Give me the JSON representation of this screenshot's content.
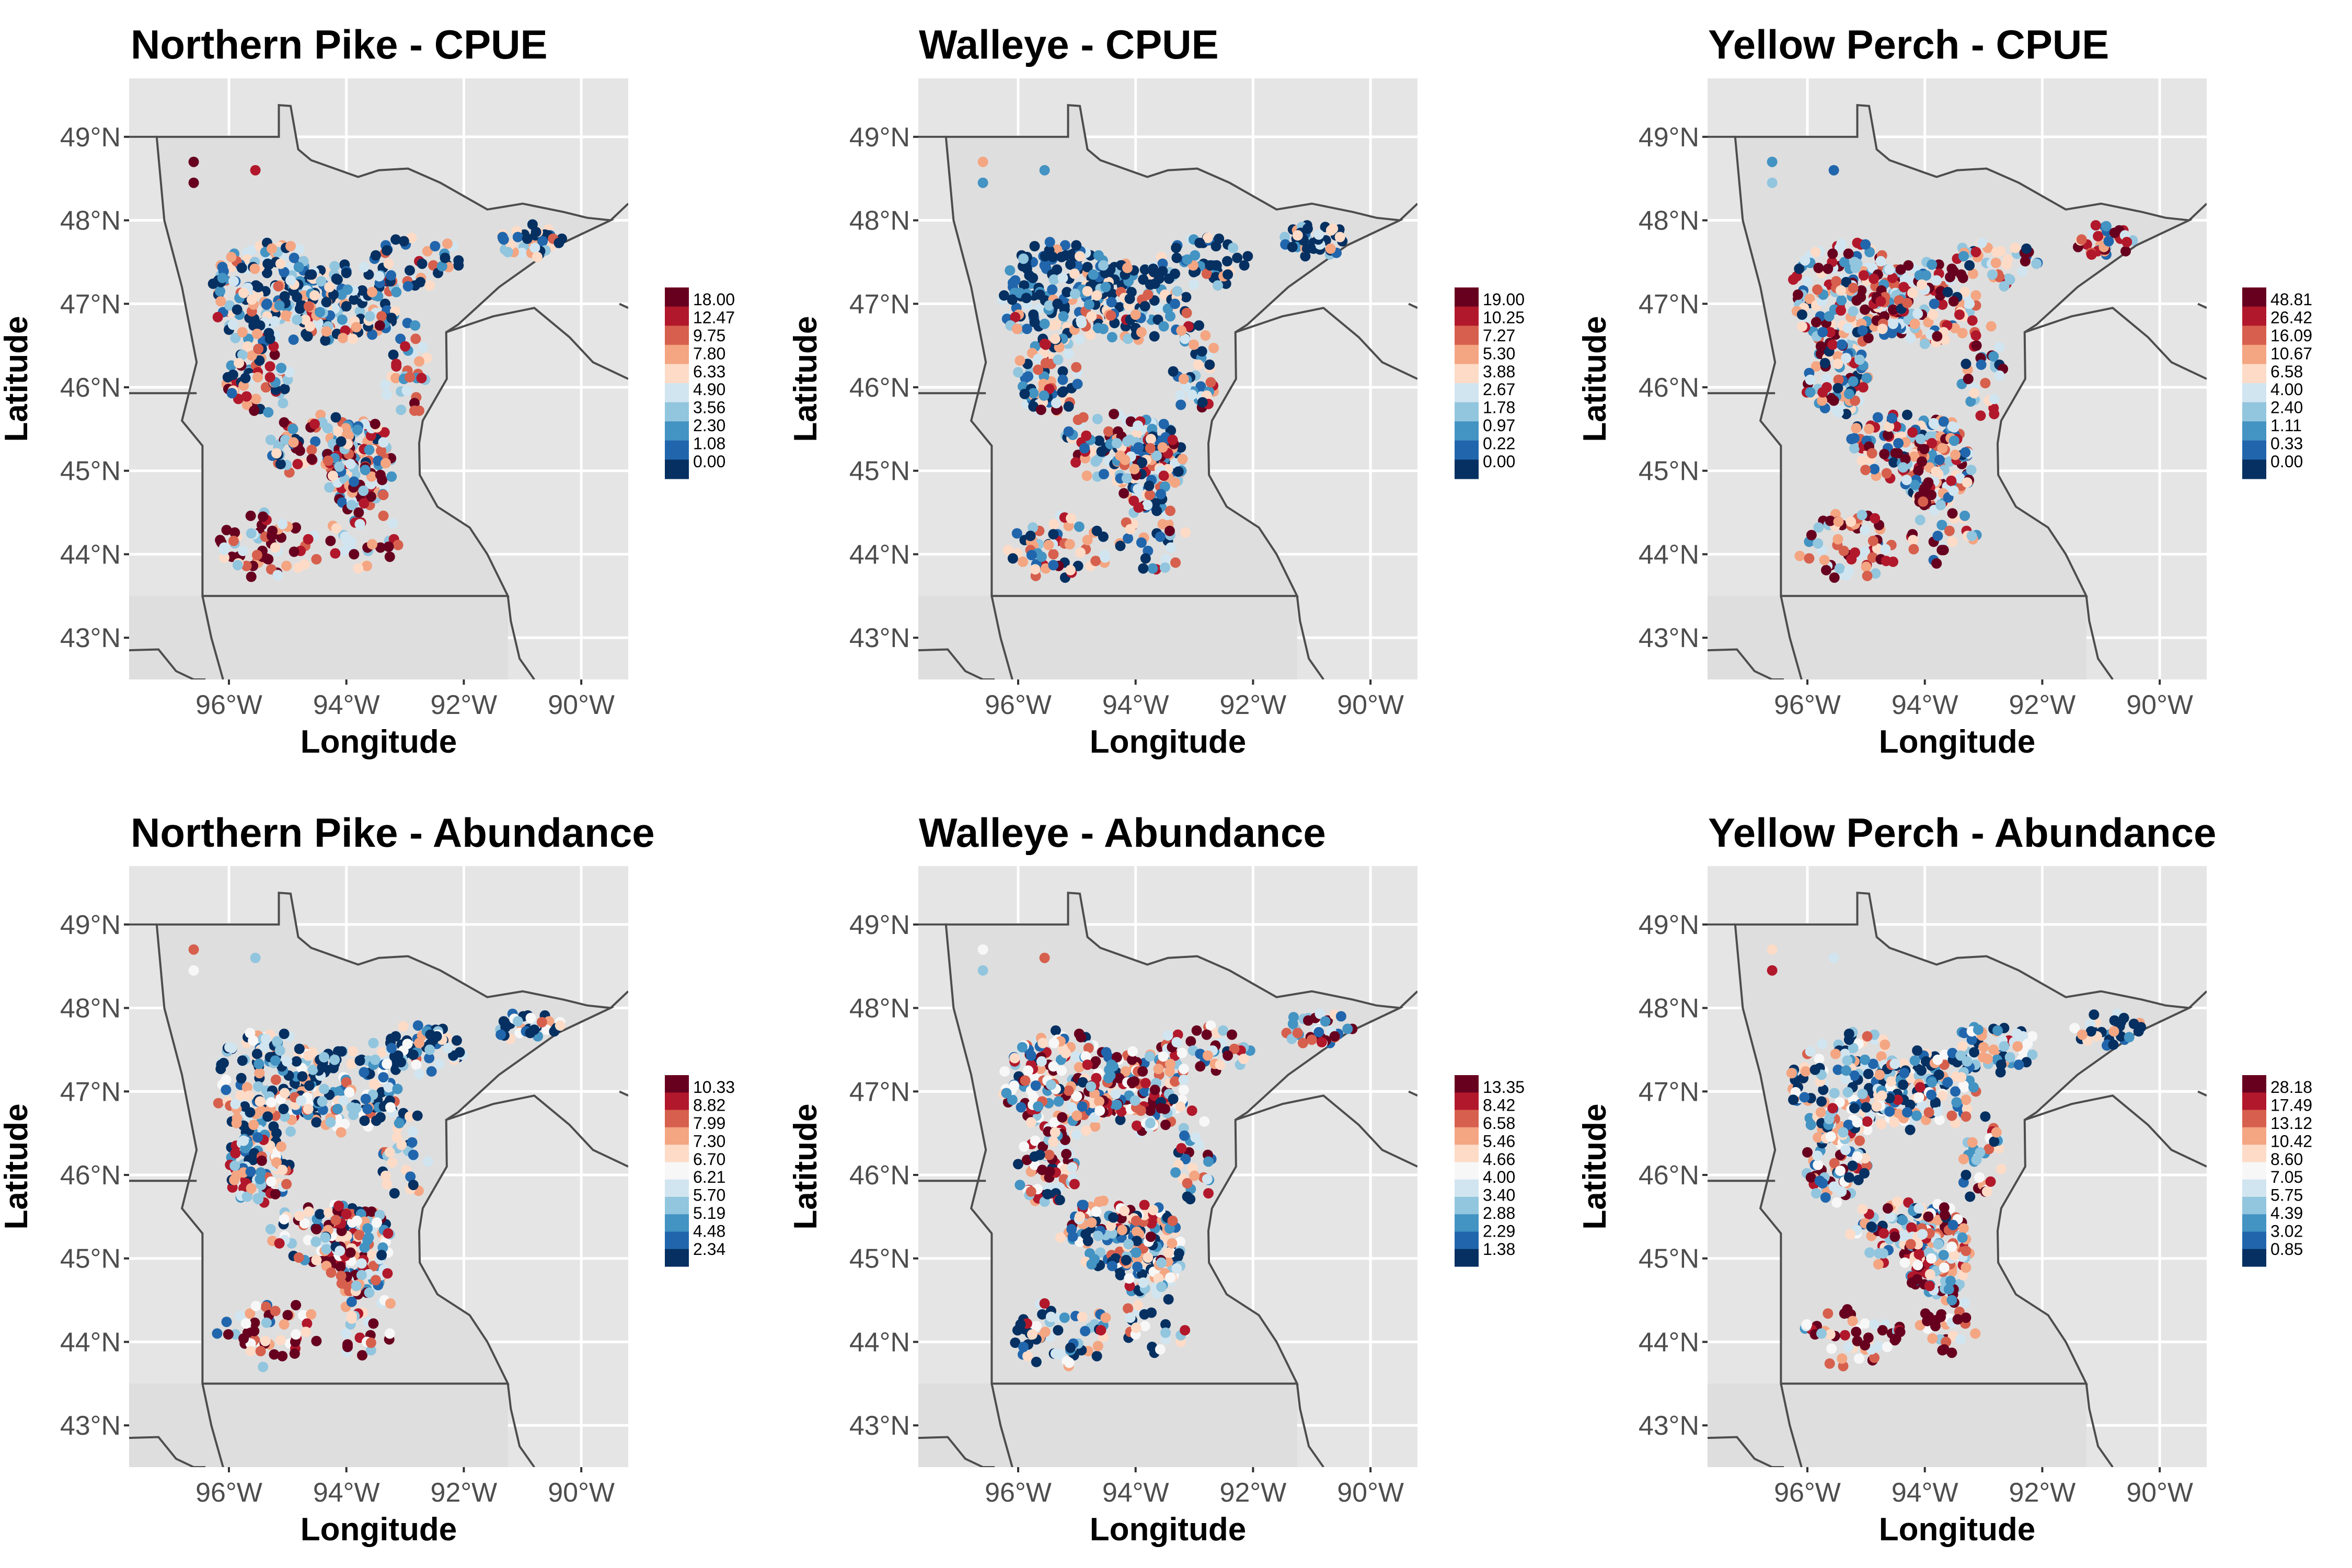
{
  "palette": [
    "#053061",
    "#2166ac",
    "#4393c3",
    "#92c5de",
    "#d1e5f0",
    "#f7f7f7",
    "#fddbc7",
    "#f4a582",
    "#d6604d",
    "#b2182b",
    "#67001f"
  ],
  "colors": {
    "panel_background": "#e5e5e5",
    "grid": "#ffffff",
    "land": "#dedede",
    "border": "#4d4d4d"
  },
  "axes": {
    "xlabel": "Longitude",
    "ylabel": "Latitude",
    "x_ticks": [
      -96,
      -94,
      -92,
      -90
    ],
    "x_tick_labels": [
      "96°W",
      "94°W",
      "92°W",
      "90°W"
    ],
    "y_ticks": [
      43,
      44,
      45,
      46,
      47,
      48,
      49
    ],
    "y_tick_labels": [
      "43°N",
      "44°N",
      "45°N",
      "46°N",
      "47°N",
      "48°N",
      "49°N"
    ],
    "xlim": [
      -97.7,
      -89.2
    ],
    "ylim": [
      42.5,
      49.7
    ]
  },
  "chart_data": [
    {
      "type": "scatter",
      "title": "Northern Pike - CPUE",
      "xlabel": "Longitude",
      "ylabel": "Latitude",
      "legend_breaks": [
        "18.00",
        "12.47",
        "9.75",
        "7.80",
        "6.33",
        "4.90",
        "3.56",
        "2.30",
        "1.08",
        "0.00"
      ],
      "legend_bins": 10,
      "seed": 11,
      "bias_north": -0.25,
      "bias_south": 0.35
    },
    {
      "type": "scatter",
      "title": "Walleye - CPUE",
      "xlabel": "Longitude",
      "ylabel": "Latitude",
      "legend_breaks": [
        "19.00",
        "10.25",
        "7.27",
        "5.30",
        "3.88",
        "2.67",
        "1.78",
        "0.97",
        "0.22",
        "0.00"
      ],
      "legend_bins": 10,
      "seed": 23,
      "bias_north": -0.35,
      "bias_south": -0.15
    },
    {
      "type": "scatter",
      "title": "Yellow Perch - CPUE",
      "xlabel": "Longitude",
      "ylabel": "Latitude",
      "legend_breaks": [
        "48.81",
        "26.42",
        "16.09",
        "10.67",
        "6.58",
        "4.00",
        "2.40",
        "1.11",
        "0.33",
        "0.00"
      ],
      "legend_bins": 10,
      "seed": 37,
      "bias_north": 0.1,
      "bias_south": 0.25
    },
    {
      "type": "scatter",
      "title": "Northern Pike - Abundance",
      "xlabel": "Longitude",
      "ylabel": "Latitude",
      "legend_breaks": [
        "10.33",
        "8.82",
        "7.99",
        "7.30",
        "6.70",
        "6.21",
        "5.70",
        "5.19",
        "4.48",
        "2.34"
      ],
      "legend_bins": 11,
      "seed": 41,
      "bias_north": -0.3,
      "bias_south": 0.25
    },
    {
      "type": "scatter",
      "title": "Walleye - Abundance",
      "xlabel": "Longitude",
      "ylabel": "Latitude",
      "legend_breaks": [
        "13.35",
        "8.42",
        "6.58",
        "5.46",
        "4.66",
        "4.00",
        "3.40",
        "2.88",
        "2.29",
        "1.38"
      ],
      "legend_bins": 11,
      "seed": 53,
      "bias_north": 0.1,
      "bias_south": -0.3
    },
    {
      "type": "scatter",
      "title": "Yellow Perch - Abundance",
      "xlabel": "Longitude",
      "ylabel": "Latitude",
      "legend_breaks": [
        "28.18",
        "17.49",
        "13.12",
        "10.42",
        "8.60",
        "7.05",
        "5.75",
        "4.39",
        "3.02",
        "0.85"
      ],
      "legend_bins": 11,
      "seed": 67,
      "bias_north": -0.25,
      "bias_south": 0.35
    }
  ]
}
